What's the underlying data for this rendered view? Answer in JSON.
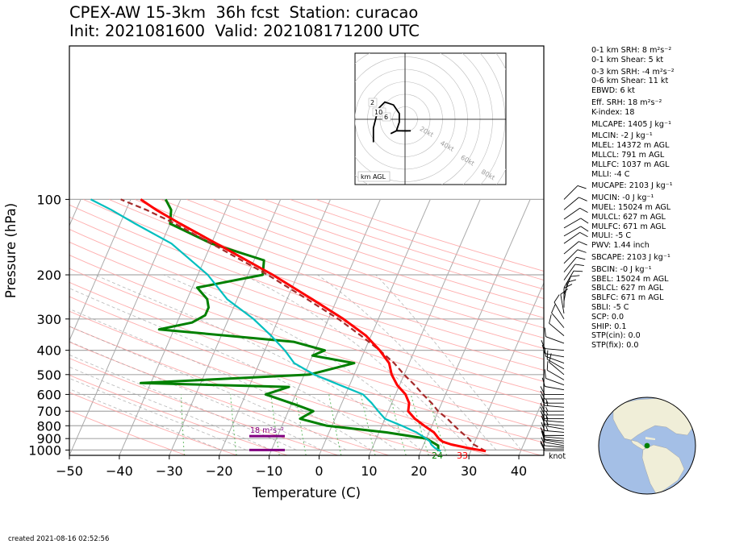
{
  "header": {
    "title_line1": "CPEX-AW 15-3km  36h fcst  Station: curacao",
    "title_line2": "Init: 2021081600  Valid: 202108171200 UTC"
  },
  "footer": {
    "created": "created 2021-08-16 02:52:56"
  },
  "indices": [
    {
      "key": "srh1",
      "text": "0-1 km SRH: 8 m²s⁻²"
    },
    {
      "key": "shear1",
      "text": "0-1 km Shear: 5 kt"
    },
    {
      "key": "srh3",
      "text": "0-3 km SRH: -4 m²s⁻²",
      "gap": true
    },
    {
      "key": "shear6",
      "text": "0-6 km Shear: 11 kt"
    },
    {
      "key": "ebwd",
      "text": "EBWD: 6 kt"
    },
    {
      "key": "esrh",
      "text": "Eff. SRH: 18 m²s⁻²",
      "gap": true
    },
    {
      "key": "kindex",
      "text": "K-index: 18"
    },
    {
      "key": "mlcape",
      "text": "MLCAPE: 1405 J kg⁻¹",
      "gap": true
    },
    {
      "key": "mlcin",
      "text": "MLCIN: -2 J kg⁻¹",
      "gap": true
    },
    {
      "key": "mlel",
      "text": "MLEL: 14372 m AGL"
    },
    {
      "key": "mllcl",
      "text": "MLLCL: 791 m AGL"
    },
    {
      "key": "mllfc",
      "text": "MLLFC: 1037 m AGL"
    },
    {
      "key": "mlli",
      "text": "MLLI: -4 C"
    },
    {
      "key": "mucape",
      "text": "MUCAPE: 2103 J kg⁻¹",
      "gap": true
    },
    {
      "key": "mucin",
      "text": "MUCIN: -0 J kg⁻¹",
      "gap": true
    },
    {
      "key": "muel",
      "text": "MUEL: 15024 m AGL"
    },
    {
      "key": "mulcl",
      "text": "MULCL: 627 m AGL"
    },
    {
      "key": "mulfc",
      "text": "MULFC: 671 m AGL"
    },
    {
      "key": "muli",
      "text": "MULI: -5 C"
    },
    {
      "key": "pwv",
      "text": "PWV: 1.44 inch"
    },
    {
      "key": "sbcape",
      "text": "SBCAPE: 2103 J kg⁻¹",
      "gap": true
    },
    {
      "key": "sbcin",
      "text": "SBCIN: -0 J kg⁻¹",
      "gap": true
    },
    {
      "key": "sbel",
      "text": "SBEL: 15024 m AGL"
    },
    {
      "key": "sblcl",
      "text": "SBLCL: 627 m AGL"
    },
    {
      "key": "sblfc",
      "text": "SBLFC: 671 m AGL"
    },
    {
      "key": "sbli",
      "text": "SBLI: -5 C"
    },
    {
      "key": "scp",
      "text": "SCP: 0.0"
    },
    {
      "key": "ship",
      "text": "SHIP: 0.1"
    },
    {
      "key": "stpcin",
      "text": "STP(cin): 0.0"
    },
    {
      "key": "stpfix",
      "text": "STP(fix): 0.0"
    }
  ],
  "colors": {
    "temperature": "#ff0000",
    "dewpoint": "#00bfbf",
    "wetbulb": "#00bfbf",
    "rh_green": "#008000",
    "parcel": "#a52a2a",
    "dry_adiabat": "#ff9999",
    "moist_adiabat": "#999999",
    "mixing_ratio": "#66bb66",
    "isotherm": "#aaaaaa",
    "srh_marker": "#800080",
    "globe_ocean": "#a4bfe6",
    "globe_land": "#f0eed8"
  },
  "chart_data": {
    "type": "skewt",
    "xlabel": "Temperature (C)",
    "ylabel": "Pressure (hPa)",
    "xlim": [
      -50,
      45
    ],
    "ylim": [
      1050,
      100
    ],
    "xticks": [
      -50,
      -40,
      -30,
      -20,
      -10,
      0,
      10,
      20,
      30,
      40
    ],
    "yticks": [
      1000,
      900,
      800,
      700,
      600,
      500,
      400,
      300,
      200,
      100
    ],
    "log_pressure": true,
    "skew_per_decade": 135,
    "surface_labels": {
      "temperature": "33",
      "dewpoint": "24"
    },
    "barb_unit": "knot",
    "series": [
      {
        "key": "temperature",
        "points": [
          [
            1010,
            33
          ],
          [
            980,
            29
          ],
          [
            950,
            25.5
          ],
          [
            925,
            23.5
          ],
          [
            900,
            22.5
          ],
          [
            850,
            21
          ],
          [
            800,
            18.5
          ],
          [
            750,
            16
          ],
          [
            700,
            14
          ],
          [
            650,
            13.5
          ],
          [
            600,
            12
          ],
          [
            550,
            9.5
          ],
          [
            500,
            7.5
          ],
          [
            450,
            6
          ],
          [
            400,
            3
          ],
          [
            350,
            -1
          ],
          [
            300,
            -7
          ],
          [
            250,
            -15
          ],
          [
            200,
            -25
          ],
          [
            150,
            -39
          ],
          [
            125,
            -48
          ],
          [
            110,
            -54
          ],
          [
            100,
            -58
          ]
        ]
      },
      {
        "key": "parcel",
        "points": [
          [
            1010,
            33
          ],
          [
            950,
            30
          ],
          [
            900,
            28.5
          ],
          [
            850,
            26.5
          ],
          [
            800,
            24.5
          ],
          [
            750,
            22.5
          ],
          [
            700,
            20
          ],
          [
            650,
            18
          ],
          [
            600,
            15.5
          ],
          [
            550,
            13
          ],
          [
            500,
            10
          ],
          [
            450,
            7
          ],
          [
            400,
            3
          ],
          [
            350,
            -2
          ],
          [
            300,
            -8
          ],
          [
            250,
            -16
          ],
          [
            200,
            -26
          ],
          [
            150,
            -40
          ],
          [
            125,
            -49
          ],
          [
            110,
            -56
          ],
          [
            100,
            -62
          ]
        ]
      },
      {
        "key": "dewpoint",
        "points": [
          [
            1010,
            24
          ],
          [
            980,
            22.5
          ],
          [
            950,
            21.5
          ],
          [
            925,
            21
          ],
          [
            900,
            20
          ],
          [
            850,
            17.5
          ],
          [
            800,
            14
          ],
          [
            750,
            10
          ],
          [
            700,
            8
          ],
          [
            650,
            6
          ],
          [
            600,
            3.5
          ],
          [
            550,
            -2
          ],
          [
            500,
            -8
          ],
          [
            450,
            -13
          ],
          [
            400,
            -16
          ],
          [
            350,
            -20
          ],
          [
            300,
            -25
          ],
          [
            250,
            -32
          ],
          [
            200,
            -38
          ],
          [
            150,
            -48
          ],
          [
            125,
            -57
          ],
          [
            110,
            -63
          ],
          [
            100,
            -68
          ]
        ]
      },
      {
        "key": "rh",
        "points": [
          [
            1010,
            23.5
          ],
          [
            960,
            23
          ],
          [
            900,
            20
          ],
          [
            850,
            11.5
          ],
          [
            800,
            -1
          ],
          [
            750,
            -7
          ],
          [
            700,
            -5
          ],
          [
            660,
            -9
          ],
          [
            600,
            -16
          ],
          [
            560,
            -12
          ],
          [
            540,
            -42
          ],
          [
            500,
            -9
          ],
          [
            450,
            -1
          ],
          [
            420,
            -10
          ],
          [
            400,
            -8
          ],
          [
            370,
            -15
          ],
          [
            330,
            -43
          ],
          [
            310,
            -37
          ],
          [
            290,
            -35
          ],
          [
            270,
            -35
          ],
          [
            250,
            -36
          ],
          [
            225,
            -39
          ],
          [
            200,
            -27
          ],
          [
            175,
            -28
          ],
          [
            150,
            -40
          ],
          [
            125,
            -50
          ],
          [
            110,
            -51
          ],
          [
            100,
            -53
          ]
        ]
      }
    ],
    "srh_bar": {
      "label": "18 m²s⁻²"
    },
    "wind_barbs": [
      {
        "p": 1005,
        "spd": 10,
        "dir": 90
      },
      {
        "p": 990,
        "spd": 10,
        "dir": 90
      },
      {
        "p": 975,
        "spd": 10,
        "dir": 95
      },
      {
        "p": 960,
        "spd": 10,
        "dir": 100
      },
      {
        "p": 940,
        "spd": 10,
        "dir": 100
      },
      {
        "p": 920,
        "spd": 10,
        "dir": 95
      },
      {
        "p": 900,
        "spd": 10,
        "dir": 95
      },
      {
        "p": 875,
        "spd": 10,
        "dir": 90
      },
      {
        "p": 850,
        "spd": 15,
        "dir": 95
      },
      {
        "p": 825,
        "spd": 15,
        "dir": 100
      },
      {
        "p": 800,
        "spd": 15,
        "dir": 95
      },
      {
        "p": 775,
        "spd": 15,
        "dir": 95
      },
      {
        "p": 750,
        "spd": 15,
        "dir": 90
      },
      {
        "p": 725,
        "spd": 15,
        "dir": 90
      },
      {
        "p": 700,
        "spd": 15,
        "dir": 90
      },
      {
        "p": 675,
        "spd": 15,
        "dir": 95
      },
      {
        "p": 650,
        "spd": 15,
        "dir": 90
      },
      {
        "p": 625,
        "spd": 10,
        "dir": 90
      },
      {
        "p": 600,
        "spd": 10,
        "dir": 90
      },
      {
        "p": 575,
        "spd": 10,
        "dir": 100
      },
      {
        "p": 550,
        "spd": 10,
        "dir": 110
      },
      {
        "p": 525,
        "spd": 10,
        "dir": 120
      },
      {
        "p": 500,
        "spd": 10,
        "dir": 130
      },
      {
        "p": 475,
        "spd": 10,
        "dir": 120
      },
      {
        "p": 450,
        "spd": 10,
        "dir": 110
      },
      {
        "p": 425,
        "spd": 10,
        "dir": 100
      },
      {
        "p": 400,
        "spd": 10,
        "dir": 95
      },
      {
        "p": 375,
        "spd": 10,
        "dir": 110
      },
      {
        "p": 350,
        "spd": 10,
        "dir": 130
      },
      {
        "p": 325,
        "spd": 10,
        "dir": 140
      },
      {
        "p": 300,
        "spd": 10,
        "dir": 150
      },
      {
        "p": 285,
        "spd": 10,
        "dir": 170
      },
      {
        "p": 270,
        "spd": 10,
        "dir": 180
      },
      {
        "p": 255,
        "spd": 10,
        "dir": 190
      },
      {
        "p": 240,
        "spd": 10,
        "dir": 200
      },
      {
        "p": 225,
        "spd": 10,
        "dir": 210
      },
      {
        "p": 210,
        "spd": 10,
        "dir": 215
      },
      {
        "p": 195,
        "spd": 10,
        "dir": 220
      },
      {
        "p": 180,
        "spd": 10,
        "dir": 225
      },
      {
        "p": 165,
        "spd": 10,
        "dir": 230
      },
      {
        "p": 150,
        "spd": 10,
        "dir": 235
      },
      {
        "p": 140,
        "spd": 10,
        "dir": 240
      },
      {
        "p": 130,
        "spd": 10,
        "dir": 240
      },
      {
        "p": 120,
        "spd": 10,
        "dir": 235
      },
      {
        "p": 110,
        "spd": 10,
        "dir": 230
      },
      {
        "p": 100,
        "spd": 10,
        "dir": 225
      }
    ],
    "hodograph": {
      "ring_labels": [
        "20kt",
        "40kt",
        "60kt",
        "80kt"
      ],
      "ring_kt": [
        20,
        40,
        60,
        80
      ],
      "height_labels": [
        "2",
        "10",
        "6"
      ],
      "unit_label": "km AGL",
      "trace_kt": [
        [
          -11,
          -8
        ],
        [
          -11,
          -3
        ],
        [
          -10,
          1
        ],
        [
          -9,
          4
        ],
        [
          -7,
          6
        ],
        [
          -4,
          5
        ],
        [
          -2,
          2
        ],
        [
          -2,
          -1
        ],
        [
          -3,
          -4
        ],
        [
          -5,
          -5
        ],
        [
          -3,
          -4
        ],
        [
          0,
          -4
        ],
        [
          2,
          -4
        ]
      ]
    }
  }
}
